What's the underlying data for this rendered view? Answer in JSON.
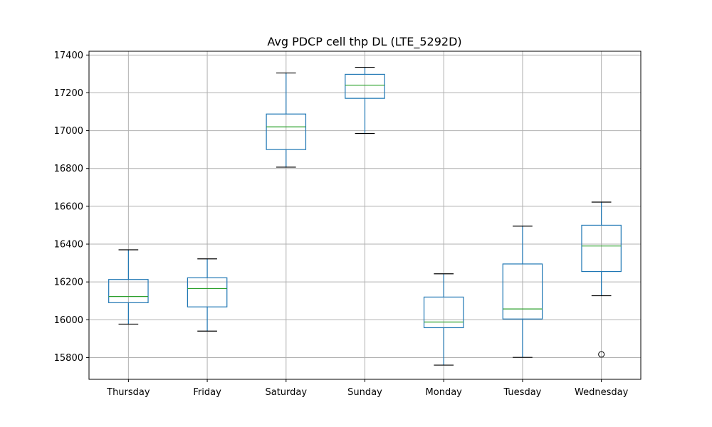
{
  "chart_data": {
    "type": "box",
    "title": "Avg PDCP cell thp DL (LTE_5292D)",
    "xlabel": "",
    "ylabel": "",
    "ylim": [
      15685,
      17420
    ],
    "yticks": [
      15800,
      16000,
      16200,
      16400,
      16600,
      16800,
      17000,
      17200,
      17400
    ],
    "grid": true,
    "colors": {
      "box": "#1f77b4",
      "median": "#2ca02c",
      "whisker_cap": "#000000",
      "grid": "#b0b0b0"
    },
    "categories": [
      "Thursday",
      "Friday",
      "Saturday",
      "Sunday",
      "Monday",
      "Tuesday",
      "Wednesday"
    ],
    "boxes": [
      {
        "whisker_low": 15977,
        "q1": 16090,
        "median": 16123,
        "q3": 16213,
        "whisker_high": 16370,
        "outliers": []
      },
      {
        "whisker_low": 15940,
        "q1": 16068,
        "median": 16165,
        "q3": 16222,
        "whisker_high": 16322,
        "outliers": []
      },
      {
        "whisker_low": 16807,
        "q1": 16900,
        "median": 17020,
        "q3": 17088,
        "whisker_high": 17305,
        "outliers": []
      },
      {
        "whisker_low": 16985,
        "q1": 17171,
        "median": 17240,
        "q3": 17298,
        "whisker_high": 17335,
        "outliers": []
      },
      {
        "whisker_low": 15760,
        "q1": 15958,
        "median": 15988,
        "q3": 16120,
        "whisker_high": 16243,
        "outliers": []
      },
      {
        "whisker_low": 15801,
        "q1": 16004,
        "median": 16057,
        "q3": 16295,
        "whisker_high": 16495,
        "outliers": []
      },
      {
        "whisker_low": 16127,
        "q1": 16255,
        "median": 16390,
        "q3": 16500,
        "whisker_high": 16622,
        "outliers": [
          15817
        ]
      }
    ]
  }
}
